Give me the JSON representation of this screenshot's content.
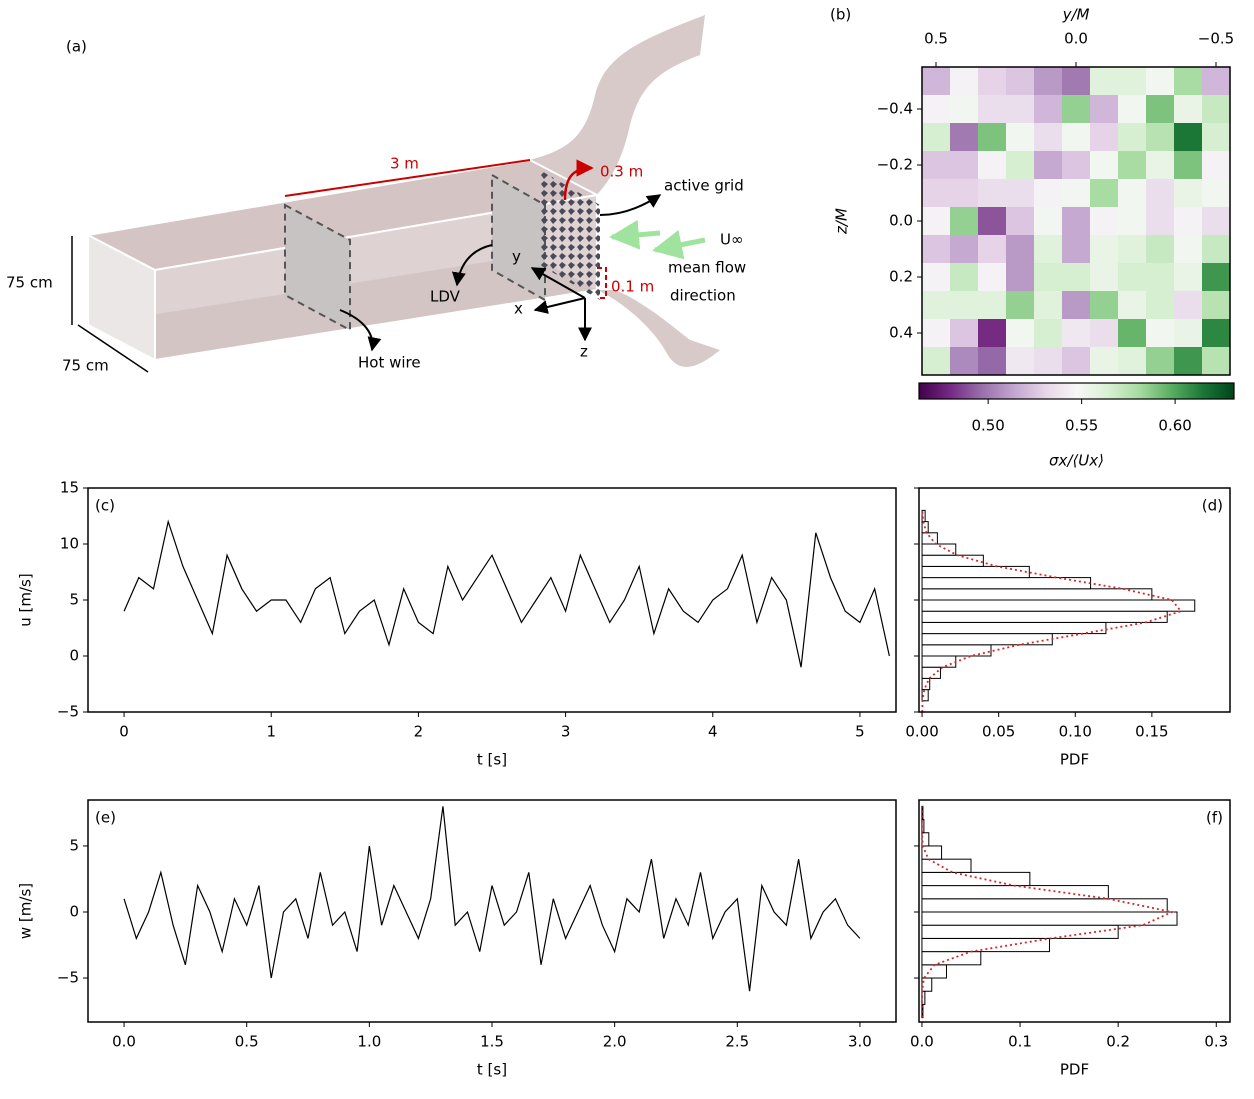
{
  "diagram": {
    "panel": "(a)",
    "length": "3 m",
    "offset": "0.3 m",
    "grid_label": "active grid",
    "velocity": "U∞",
    "flow_1": "mean flow",
    "flow_2": "direction",
    "height": "75 cm",
    "width": "75 cm",
    "probe_offset": "0.1 m",
    "ldv": "LDV",
    "hot_wire": "Hot wire",
    "axis_x": "x",
    "axis_y": "y",
    "axis_z": "z"
  },
  "chart_data": [
    {
      "type": "heatmap",
      "panel": "(b)",
      "xlabel": "y/M",
      "ylabel": "z/M",
      "colorbar_label": "σx/⟨Ux⟩",
      "colormap": "PRGn",
      "xlim": [
        0.55,
        -0.55
      ],
      "ylim": [
        -0.55,
        0.55
      ],
      "clim": [
        0.463,
        0.6315
      ],
      "xticks": [
        {
          "value": 0.5,
          "label": "0.5"
        },
        {
          "value": 0.0,
          "label": "0.0"
        },
        {
          "value": -0.5,
          "label": "−0.5"
        }
      ],
      "yticks": [
        {
          "value": -0.4,
          "label": "−0.4"
        },
        {
          "value": -0.2,
          "label": "−0.2"
        },
        {
          "value": 0.0,
          "label": "0.0"
        },
        {
          "value": 0.2,
          "label": "0.2"
        },
        {
          "value": 0.4,
          "label": "0.4"
        }
      ],
      "cticks": [
        {
          "value": 0.5,
          "label": "0.50"
        },
        {
          "value": 0.55,
          "label": "0.55"
        },
        {
          "value": 0.6,
          "label": "0.60"
        }
      ],
      "values": [
        [
          0.52,
          0.545,
          0.53,
          0.525,
          0.51,
          0.5,
          0.56,
          0.56,
          0.55,
          0.58,
          0.52
        ],
        [
          0.545,
          0.55,
          0.535,
          0.535,
          0.52,
          0.585,
          0.52,
          0.55,
          0.59,
          0.555,
          0.57
        ],
        [
          0.565,
          0.5,
          0.59,
          0.55,
          0.535,
          0.55,
          0.53,
          0.565,
          0.575,
          0.615,
          0.565
        ],
        [
          0.525,
          0.525,
          0.545,
          0.565,
          0.515,
          0.525,
          0.55,
          0.58,
          0.555,
          0.59,
          0.545
        ],
        [
          0.53,
          0.53,
          0.535,
          0.535,
          0.545,
          0.55,
          0.58,
          0.55,
          0.535,
          0.555,
          0.55
        ],
        [
          0.545,
          0.585,
          0.49,
          0.525,
          0.55,
          0.515,
          0.545,
          0.55,
          0.535,
          0.545,
          0.535
        ],
        [
          0.525,
          0.515,
          0.53,
          0.51,
          0.56,
          0.515,
          0.555,
          0.56,
          0.57,
          0.55,
          0.57
        ],
        [
          0.545,
          0.57,
          0.545,
          0.51,
          0.565,
          0.565,
          0.555,
          0.565,
          0.565,
          0.555,
          0.605
        ],
        [
          0.56,
          0.56,
          0.56,
          0.585,
          0.56,
          0.51,
          0.585,
          0.555,
          0.565,
          0.535,
          0.575
        ],
        [
          0.545,
          0.525,
          0.48,
          0.55,
          0.565,
          0.54,
          0.535,
          0.595,
          0.55,
          0.555,
          0.61
        ],
        [
          0.565,
          0.505,
          0.495,
          0.54,
          0.535,
          0.525,
          0.555,
          0.56,
          0.585,
          0.605,
          0.575
        ]
      ]
    },
    {
      "type": "line",
      "panel": "(c)",
      "xlabel": "t [s]",
      "ylabel": "u [m/s]",
      "color": "#000000",
      "xlim": [
        -0.245,
        5.245
      ],
      "ylim": [
        -5,
        15
      ],
      "xticks": [
        0,
        1,
        2,
        3,
        4,
        5
      ],
      "yticks": [
        {
          "value": -5,
          "label": "−5"
        },
        0,
        5,
        10,
        15
      ],
      "x": [
        0,
        0.1,
        0.2,
        0.3,
        0.4,
        0.5,
        0.6,
        0.7,
        0.8,
        0.9,
        1.0,
        1.1,
        1.2,
        1.3,
        1.4,
        1.5,
        1.6,
        1.7,
        1.8,
        1.9,
        2.0,
        2.1,
        2.2,
        2.3,
        2.4,
        2.5,
        2.6,
        2.7,
        2.8,
        2.9,
        3.0,
        3.1,
        3.2,
        3.3,
        3.4,
        3.5,
        3.6,
        3.7,
        3.8,
        3.9,
        4.0,
        4.1,
        4.2,
        4.3,
        4.4,
        4.5,
        4.6,
        4.7,
        4.8,
        4.9,
        5.0,
        5.1,
        5.2
      ],
      "values": [
        4,
        7,
        6,
        12,
        8,
        5,
        2,
        9,
        6,
        4,
        5,
        5,
        3,
        6,
        7,
        2,
        4,
        5,
        1,
        6,
        3,
        2,
        8,
        5,
        7,
        9,
        6,
        3,
        5,
        7,
        4,
        9,
        6,
        3,
        5,
        8,
        2,
        6,
        4,
        3,
        5,
        6,
        9,
        3,
        7,
        5,
        -1,
        11,
        7,
        4,
        3,
        6,
        0
      ]
    },
    {
      "type": "histogram",
      "panel": "(d)",
      "xlabel": "PDF",
      "color": "#000000",
      "xlim": [
        -0.002,
        0.201
      ],
      "ylim": [
        -5,
        15
      ],
      "xticks": [
        {
          "value": 0,
          "label": "0.00"
        },
        {
          "value": 0.05,
          "label": "0.05"
        },
        {
          "value": 0.1,
          "label": "0.10"
        },
        {
          "value": 0.15,
          "label": "0.15"
        }
      ],
      "yticks": [
        -5,
        0,
        5,
        10,
        15
      ],
      "bins": [
        -4,
        -3,
        -2,
        -1,
        0,
        1,
        2,
        3,
        4,
        5,
        6,
        7,
        8,
        9,
        10,
        11,
        12,
        13
      ],
      "values": [
        0.004,
        0.005,
        0.012,
        0.022,
        0.045,
        0.085,
        0.12,
        0.16,
        0.178,
        0.15,
        0.11,
        0.07,
        0.04,
        0.022,
        0.01,
        0.004,
        0.002
      ],
      "fit": {
        "color": "#d62728",
        "x": [
          -5,
          -4,
          -3,
          -2,
          -1,
          0,
          1,
          2,
          3,
          4,
          5,
          6,
          7,
          8,
          9,
          10,
          11,
          12,
          13
        ],
        "values": [
          0.0001,
          0.0003,
          0.0014,
          0.0047,
          0.0134,
          0.0319,
          0.0634,
          0.105,
          0.146,
          0.169,
          0.163,
          0.131,
          0.088,
          0.049,
          0.023,
          0.009,
          0.0029,
          0.0008,
          0.0002
        ]
      }
    },
    {
      "type": "line",
      "panel": "(e)",
      "xlabel": "t [s]",
      "ylabel": "w [m/s]",
      "color": "#000000",
      "xlim": [
        -0.147,
        3.147
      ],
      "ylim": [
        -8.33,
        8.48
      ],
      "xticks": [
        {
          "value": 0,
          "label": "0.0"
        },
        {
          "value": 0.5,
          "label": "0.5"
        },
        {
          "value": 1,
          "label": "1.0"
        },
        {
          "value": 1.5,
          "label": "1.5"
        },
        {
          "value": 2,
          "label": "2.0"
        },
        {
          "value": 2.5,
          "label": "2.5"
        },
        {
          "value": 3,
          "label": "3.0"
        }
      ],
      "yticks": [
        {
          "value": -5,
          "label": "−5"
        },
        0,
        5
      ],
      "x": [
        0,
        0.05,
        0.1,
        0.15,
        0.2,
        0.25,
        0.3,
        0.35,
        0.4,
        0.45,
        0.5,
        0.55,
        0.6,
        0.65,
        0.7,
        0.75,
        0.8,
        0.85,
        0.9,
        0.95,
        1.0,
        1.05,
        1.1,
        1.15,
        1.2,
        1.25,
        1.3,
        1.35,
        1.4,
        1.45,
        1.5,
        1.55,
        1.6,
        1.65,
        1.7,
        1.75,
        1.8,
        1.85,
        1.9,
        1.95,
        2.0,
        2.05,
        2.1,
        2.15,
        2.2,
        2.25,
        2.3,
        2.35,
        2.4,
        2.45,
        2.5,
        2.55,
        2.6,
        2.65,
        2.7,
        2.75,
        2.8,
        2.85,
        2.9,
        2.95,
        3.0
      ],
      "values": [
        1,
        -2,
        0,
        3,
        -1,
        -4,
        2,
        0,
        -3,
        1,
        -1,
        2,
        -5,
        0,
        1,
        -2,
        3,
        -1,
        0,
        -3,
        5,
        -1,
        2,
        0,
        -2,
        1,
        8,
        -1,
        0,
        -3,
        2,
        -1,
        0,
        3,
        -4,
        1,
        -2,
        0,
        2,
        -1,
        -3,
        1,
        0,
        4,
        -2,
        1,
        -1,
        3,
        -2,
        0,
        1,
        -6,
        2,
        0,
        -1,
        4,
        -2,
        0,
        1,
        -1,
        -2
      ]
    },
    {
      "type": "histogram",
      "panel": "(f)",
      "xlabel": "PDF",
      "color": "#000000",
      "xlim": [
        -0.003,
        0.314
      ],
      "ylim": [
        -8.33,
        8.48
      ],
      "xticks": [
        {
          "value": 0,
          "label": "0.0"
        },
        {
          "value": 0.1,
          "label": "0.1"
        },
        {
          "value": 0.2,
          "label": "0.2"
        },
        {
          "value": 0.3,
          "label": "0.3"
        }
      ],
      "yticks": [
        -5,
        0,
        5
      ],
      "bins": [
        -8,
        -7,
        -6,
        -5,
        -4,
        -3,
        -2,
        -1,
        0,
        1,
        2,
        3,
        4,
        5,
        6,
        7,
        8
      ],
      "values": [
        0.001,
        0.003,
        0.01,
        0.025,
        0.06,
        0.13,
        0.2,
        0.26,
        0.25,
        0.19,
        0.11,
        0.05,
        0.02,
        0.007,
        0.002,
        0.001
      ],
      "fit": {
        "color": "#d62728",
        "x": [
          -8,
          -7,
          -6,
          -5,
          -4,
          -3,
          -2,
          -1,
          0,
          1,
          2,
          3,
          4,
          5,
          6,
          7,
          8
        ],
        "values": [
          0,
          0,
          0.0002,
          0.0021,
          0.0128,
          0.05,
          0.131,
          0.225,
          0.255,
          0.19,
          0.094,
          0.031,
          0.0066,
          0.0009,
          0.0001,
          0,
          0
        ]
      }
    }
  ]
}
